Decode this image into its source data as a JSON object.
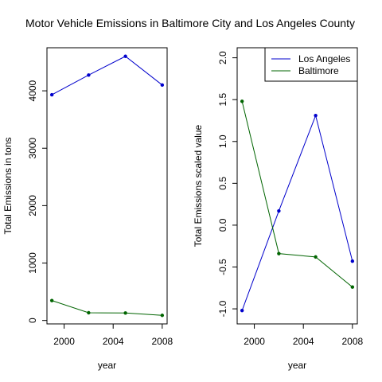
{
  "title": "Motor Vehicle Emissions in Baltimore City and Los Angeles County",
  "chart_data": [
    {
      "type": "line",
      "xlabel": "year",
      "ylabel": "Total Emissions in tons",
      "x": [
        1999,
        2002,
        2005,
        2008
      ],
      "xlim": [
        1998.6,
        2008.4
      ],
      "ylim": [
        -60,
        4750
      ],
      "x_ticks": [
        2000,
        2004,
        2008
      ],
      "x_tick_labels": [
        "2000",
        "2004",
        "2008"
      ],
      "y_ticks": [
        0,
        1000,
        2000,
        3000,
        4000
      ],
      "y_tick_labels": [
        "0",
        "1000",
        "2000",
        "3000",
        "4000"
      ],
      "grid": false,
      "series": [
        {
          "color": "#0000cc",
          "values": [
            3931,
            4274,
            4601,
            4101
          ]
        },
        {
          "color": "#006400",
          "values": [
            347,
            134,
            130,
            89
          ]
        }
      ]
    },
    {
      "type": "line",
      "xlabel": "year",
      "ylabel": "Total Emissions scaled value",
      "x": [
        1999,
        2002,
        2005,
        2008
      ],
      "xlim": [
        1998.6,
        2008.4
      ],
      "ylim": [
        -1.18,
        2.12
      ],
      "x_ticks": [
        2000,
        2004,
        2008
      ],
      "x_tick_labels": [
        "2000",
        "2004",
        "2008"
      ],
      "y_ticks": [
        -1.0,
        -0.5,
        0.0,
        0.5,
        1.0,
        1.5,
        2.0
      ],
      "y_tick_labels": [
        "-1.0",
        "-0.5",
        "0.0",
        "0.5",
        "1.0",
        "1.5",
        "2.0"
      ],
      "grid": false,
      "legend": "top-right",
      "series": [
        {
          "name": "Los Angeles",
          "color": "#0000cc",
          "values": [
            -1.02,
            0.17,
            1.31,
            -0.43
          ]
        },
        {
          "name": "Baltimore",
          "color": "#006400",
          "values": [
            1.48,
            -0.34,
            -0.38,
            -0.74
          ]
        }
      ]
    }
  ]
}
